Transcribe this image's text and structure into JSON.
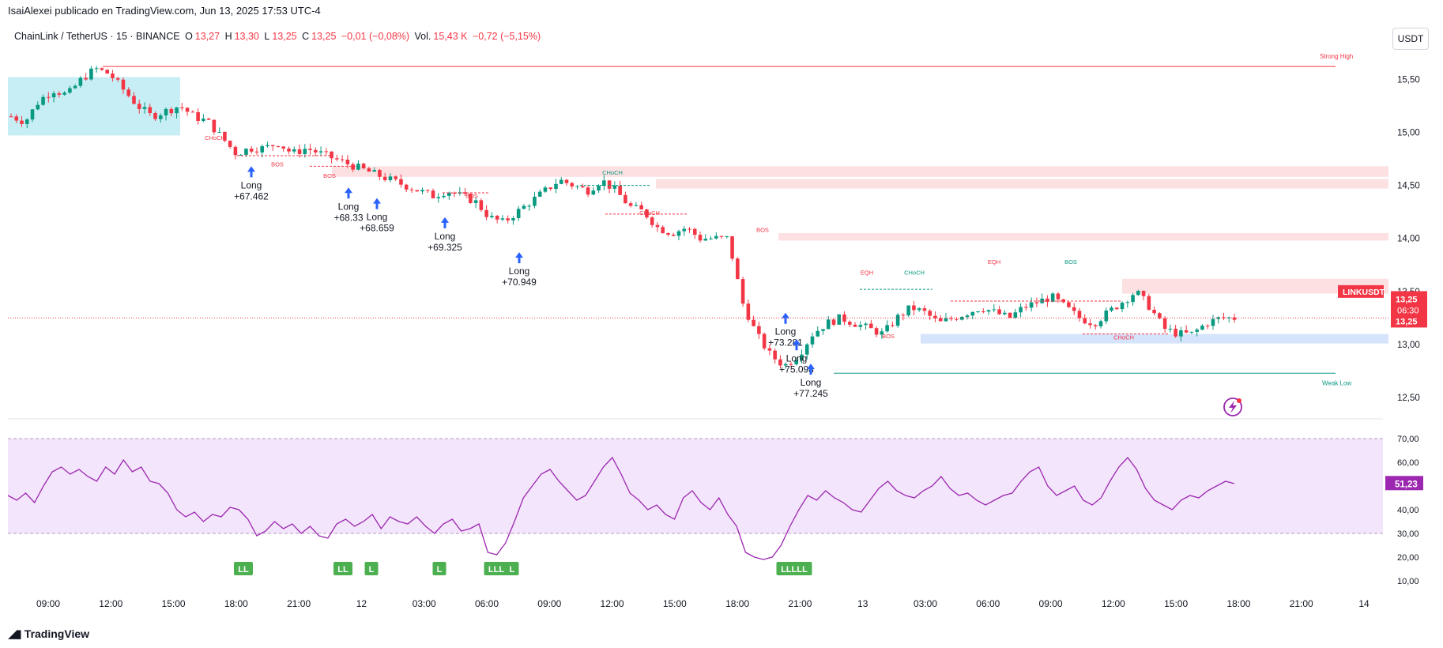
{
  "header": {
    "publisher": "IsaiAlexei publicado en TradingView.com, Jun 13, 2025 17:53 UTC-4",
    "symbol": "ChainLink / TetherUS · 15 · BINANCE",
    "o_label": "O",
    "o_value": "13,27",
    "h_label": "H",
    "h_value": "13,30",
    "l_label": "L",
    "l_value": "13,25",
    "c_label": "C",
    "c_value": "13,25",
    "change": "−0,01 (−0,08%)",
    "vol_label": "Vol.",
    "vol_value": "15,43 K",
    "vol_change": "−0,72 (−5,15%)",
    "currency": "USDT"
  },
  "footer": {
    "brand": "TradingView"
  },
  "colors": {
    "up": "#089981",
    "down": "#f23645",
    "rsi": "#9c27b0",
    "signal": "#2962ff",
    "zone_red": "#fde0e2",
    "zone_blue": "#d6e4fb",
    "zone_cyan": "#c8eef5"
  },
  "chart_data": [
    {
      "type": "candlestick",
      "name": "price",
      "ylim": [
        12.3,
        15.8
      ],
      "yticks": [
        "15,50",
        "15,00",
        "14,50",
        "14,00",
        "13,50",
        "13,00",
        "12,50"
      ],
      "ytick_values": [
        15.5,
        15.0,
        14.5,
        14.0,
        13.5,
        13.0,
        12.5
      ],
      "xticks": [
        "09:00",
        "12:00",
        "15:00",
        "18:00",
        "21:00",
        "12",
        "03:00",
        "06:00",
        "09:00",
        "12:00",
        "15:00",
        "18:00",
        "21:00",
        "13",
        "03:00",
        "06:00",
        "09:00",
        "12:00",
        "15:00",
        "18:00",
        "21:00",
        "14"
      ],
      "close_path": [
        15.15,
        15.1,
        15.3,
        15.4,
        15.35,
        15.5,
        15.6,
        15.55,
        15.4,
        15.25,
        15.15,
        15.2,
        15.25,
        15.15,
        15.1,
        14.95,
        14.8,
        14.85,
        14.85,
        14.9,
        14.8,
        14.85,
        14.8,
        14.75,
        14.7,
        14.65,
        14.6,
        14.55,
        14.5,
        14.45,
        14.4,
        14.45,
        14.4,
        14.35,
        14.2,
        14.15,
        14.25,
        14.35,
        14.45,
        14.55,
        14.5,
        14.45,
        14.55,
        14.45,
        14.3,
        14.25,
        14.1,
        14.05,
        14.1,
        14.0,
        14.0,
        14.0,
        13.4,
        13.1,
        12.9,
        12.8,
        12.9,
        13.1,
        13.2,
        13.25,
        13.2,
        13.15,
        13.1,
        13.25,
        13.35,
        13.3,
        13.2,
        13.25,
        13.3,
        13.35,
        13.3,
        13.25,
        13.35,
        13.4,
        13.45,
        13.35,
        13.25,
        13.2,
        13.3,
        13.4,
        13.5,
        13.35,
        13.15,
        13.1,
        13.1,
        13.2,
        13.25,
        13.25
      ],
      "current_price": "13,25",
      "countdown": "06:30",
      "symbol_tag": "LINKUSDT",
      "levels": [
        {
          "label": "Strong High",
          "value": 15.62
        },
        {
          "label": "Weak Low",
          "value": 12.73
        }
      ],
      "structure_labels": [
        "CHoCH",
        "BOS",
        "BOS",
        "BOS",
        "CHoCH",
        "CHoCH",
        "BOS",
        "EQH",
        "CHoCH",
        "BOS",
        "EQH",
        "BOS",
        "CHoCH"
      ],
      "signals": [
        {
          "label": "Long",
          "value": "+67.462"
        },
        {
          "label": "Long",
          "value": "+68.33"
        },
        {
          "label": "Long",
          "value": "+68.659"
        },
        {
          "label": "Long",
          "value": "+69.325"
        },
        {
          "label": "Long",
          "value": "+70.949"
        },
        {
          "label": "Long",
          "value": "+73.281"
        },
        {
          "label": "Long",
          "value": "+75.098"
        },
        {
          "label": "Long",
          "value": "+77.245"
        }
      ]
    },
    {
      "type": "line",
      "name": "RSI",
      "ylim": [
        5,
        75
      ],
      "yticks": [
        "70,00",
        "60,00",
        "50,00",
        "40,00",
        "30,00",
        "20,00",
        "10,00"
      ],
      "ytick_values": [
        70,
        60,
        50,
        40,
        30,
        20,
        10
      ],
      "bands": [
        30,
        70
      ],
      "current_value": "51,23",
      "values": [
        46,
        44,
        47,
        43,
        50,
        56,
        58,
        55,
        57,
        54,
        52,
        58,
        55,
        61,
        56,
        58,
        52,
        51,
        47,
        40,
        37,
        39,
        35,
        38,
        37,
        41,
        40,
        36,
        29,
        31,
        35,
        32,
        34,
        30,
        33,
        29,
        28,
        34,
        36,
        33,
        35,
        38,
        32,
        37,
        35,
        34,
        37,
        33,
        30,
        34,
        36,
        31,
        32,
        34,
        22,
        21,
        26,
        35,
        45,
        50,
        55,
        57,
        52,
        48,
        44,
        46,
        52,
        58,
        62,
        55,
        47,
        44,
        40,
        42,
        38,
        36,
        45,
        48,
        43,
        40,
        45,
        38,
        33,
        22,
        20,
        19,
        20,
        25,
        33,
        40,
        46,
        44,
        48,
        45,
        43,
        40,
        39,
        44,
        49,
        52,
        48,
        46,
        45,
        48,
        50,
        54,
        49,
        46,
        47,
        44,
        42,
        44,
        46,
        47,
        52,
        56,
        58,
        50,
        46,
        48,
        50,
        44,
        42,
        45,
        52,
        58,
        62,
        57,
        49,
        44,
        42,
        40,
        44,
        46,
        45,
        48,
        50,
        52,
        51
      ]
    }
  ],
  "rsi_markers": [
    "LL",
    "LL",
    "L",
    "L",
    "LLL",
    "L",
    "LLLLL"
  ]
}
